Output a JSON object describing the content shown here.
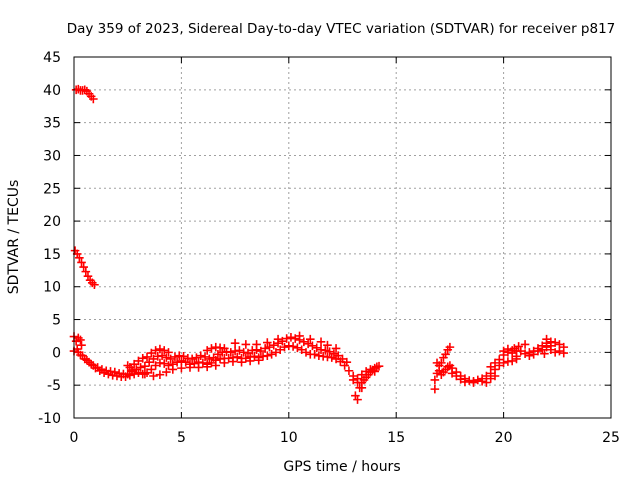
{
  "chart_data": {
    "type": "scatter",
    "title": "Day 359 of 2023, Sidereal Day-to-day VTEC variation (SDTVAR) for receiver p817",
    "xlabel": "GPS time / hours",
    "ylabel": "SDTVAR / TECUs",
    "xlim": [
      0,
      25
    ],
    "ylim": [
      -10,
      45
    ],
    "xticks": [
      0,
      5,
      10,
      15,
      20,
      25
    ],
    "yticks": [
      -10,
      -5,
      0,
      5,
      10,
      15,
      20,
      25,
      30,
      35,
      40,
      45
    ],
    "grid": true,
    "marker": "+",
    "color": "#ff0000",
    "series": [
      {
        "name": "SDTVAR",
        "points": [
          [
            0.1,
            40.0
          ],
          [
            0.2,
            40.1
          ],
          [
            0.3,
            39.9
          ],
          [
            0.4,
            39.9
          ],
          [
            0.5,
            40.0
          ],
          [
            0.6,
            39.8
          ],
          [
            0.7,
            39.4
          ],
          [
            0.8,
            39.0
          ],
          [
            0.9,
            38.6
          ],
          [
            0.05,
            15.5
          ],
          [
            0.15,
            15.0
          ],
          [
            0.25,
            14.4
          ],
          [
            0.35,
            13.7
          ],
          [
            0.45,
            13.0
          ],
          [
            0.55,
            12.3
          ],
          [
            0.65,
            11.6
          ],
          [
            0.75,
            11.0
          ],
          [
            0.85,
            10.6
          ],
          [
            0.95,
            10.3
          ],
          [
            0.0,
            2.4
          ],
          [
            0.1,
            1.7
          ],
          [
            0.2,
            2.2
          ],
          [
            0.3,
            1.9
          ],
          [
            0.35,
            1.1
          ],
          [
            0.15,
            0.5
          ],
          [
            0.0,
            0.2
          ],
          [
            0.2,
            0.0
          ],
          [
            0.4,
            -0.5
          ],
          [
            0.6,
            -1.2
          ],
          [
            0.8,
            -1.8
          ],
          [
            1.0,
            -2.4
          ],
          [
            1.2,
            -2.8
          ],
          [
            1.4,
            -3.1
          ],
          [
            1.6,
            -3.3
          ],
          [
            1.8,
            -3.5
          ],
          [
            2.0,
            -3.6
          ],
          [
            2.2,
            -3.7
          ],
          [
            2.4,
            -3.7
          ],
          [
            2.6,
            -3.5
          ],
          [
            2.8,
            -3.3
          ],
          [
            3.0,
            -3.1
          ],
          [
            3.2,
            -3.3
          ],
          [
            3.4,
            -3.1
          ],
          [
            3.6,
            -2.6
          ],
          [
            3.8,
            -2.0
          ],
          [
            4.0,
            -1.6
          ],
          [
            4.2,
            -1.7
          ],
          [
            4.4,
            -2.0
          ],
          [
            4.6,
            -1.8
          ],
          [
            4.8,
            -1.5
          ],
          [
            5.0,
            -1.3
          ],
          [
            5.2,
            -1.5
          ],
          [
            5.4,
            -1.8
          ],
          [
            5.6,
            -1.7
          ],
          [
            5.8,
            -1.5
          ],
          [
            6.0,
            -1.6
          ],
          [
            6.2,
            -1.8
          ],
          [
            6.4,
            -1.6
          ],
          [
            6.6,
            -1.2
          ],
          [
            6.8,
            -1.0
          ],
          [
            7.0,
            -0.9
          ],
          [
            7.2,
            -0.9
          ],
          [
            7.4,
            -0.8
          ],
          [
            7.6,
            -0.7
          ],
          [
            7.8,
            -0.9
          ],
          [
            8.0,
            -0.9
          ],
          [
            8.2,
            -0.7
          ],
          [
            8.4,
            -0.6
          ],
          [
            8.6,
            -0.8
          ],
          [
            8.8,
            -0.6
          ],
          [
            9.0,
            -0.5
          ],
          [
            9.2,
            -0.3
          ],
          [
            9.4,
            0.0
          ],
          [
            9.6,
            0.4
          ],
          [
            9.8,
            0.8
          ],
          [
            10.0,
            1.0
          ],
          [
            10.2,
            0.9
          ],
          [
            10.4,
            0.7
          ],
          [
            10.6,
            0.4
          ],
          [
            10.8,
            0.0
          ],
          [
            11.0,
            -0.3
          ],
          [
            11.2,
            -0.3
          ],
          [
            11.4,
            -0.5
          ],
          [
            11.6,
            -0.6
          ],
          [
            11.8,
            -0.7
          ],
          [
            12.0,
            -0.8
          ],
          [
            12.2,
            -1.0
          ],
          [
            12.4,
            -1.4
          ],
          [
            12.6,
            -2.0
          ],
          [
            12.8,
            -2.8
          ],
          [
            13.0,
            -3.6
          ],
          [
            13.2,
            -4.6
          ],
          [
            13.4,
            -5.4
          ],
          [
            0.3,
            -0.4
          ],
          [
            0.5,
            -1.0
          ],
          [
            0.7,
            -1.5
          ],
          [
            0.9,
            -2.0
          ],
          [
            1.1,
            -2.3
          ],
          [
            1.3,
            -2.6
          ],
          [
            1.5,
            -2.8
          ],
          [
            1.7,
            -2.9
          ],
          [
            1.9,
            -3.0
          ],
          [
            2.1,
            -3.2
          ],
          [
            2.3,
            -3.3
          ],
          [
            2.5,
            -3.3
          ],
          [
            2.7,
            -2.9
          ],
          [
            2.9,
            -2.6
          ],
          [
            3.1,
            -2.3
          ],
          [
            3.3,
            -2.1
          ],
          [
            3.5,
            -1.5
          ],
          [
            3.7,
            -1.0
          ],
          [
            3.9,
            -0.6
          ],
          [
            4.1,
            -0.5
          ],
          [
            4.3,
            -0.8
          ],
          [
            4.5,
            -1.0
          ],
          [
            4.7,
            -0.7
          ],
          [
            4.9,
            -0.5
          ],
          [
            5.1,
            -0.6
          ],
          [
            5.3,
            -0.9
          ],
          [
            5.5,
            -1.0
          ],
          [
            5.7,
            -0.8
          ],
          [
            5.9,
            -0.5
          ],
          [
            6.1,
            -0.7
          ],
          [
            6.3,
            -1.0
          ],
          [
            6.5,
            -0.8
          ],
          [
            6.7,
            -0.3
          ],
          [
            6.9,
            0.0
          ],
          [
            7.1,
            0.1
          ],
          [
            7.3,
            0.0
          ],
          [
            7.5,
            0.2
          ],
          [
            7.7,
            0.3
          ],
          [
            7.9,
            0.0
          ],
          [
            8.1,
            -0.1
          ],
          [
            8.3,
            0.3
          ],
          [
            8.5,
            0.4
          ],
          [
            8.7,
            0.2
          ],
          [
            8.9,
            0.6
          ],
          [
            9.1,
            0.8
          ],
          [
            9.3,
            1.1
          ],
          [
            9.5,
            1.4
          ],
          [
            9.7,
            1.7
          ],
          [
            9.9,
            2.1
          ],
          [
            10.1,
            2.3
          ],
          [
            10.3,
            2.1
          ],
          [
            10.5,
            1.9
          ],
          [
            10.7,
            1.6
          ],
          [
            10.9,
            1.3
          ],
          [
            11.1,
            1.0
          ],
          [
            11.3,
            0.7
          ],
          [
            11.5,
            0.4
          ],
          [
            11.7,
            0.3
          ],
          [
            11.9,
            0.1
          ],
          [
            12.1,
            -0.2
          ],
          [
            12.3,
            -0.5
          ],
          [
            12.5,
            -1.0
          ],
          [
            12.7,
            -1.5
          ],
          [
            2.6,
            -2.3
          ],
          [
            2.8,
            -1.8
          ],
          [
            3.0,
            -1.3
          ],
          [
            3.2,
            -0.9
          ],
          [
            3.4,
            -0.7
          ],
          [
            3.6,
            -0.1
          ],
          [
            3.8,
            0.3
          ],
          [
            4.0,
            0.5
          ],
          [
            4.2,
            0.3
          ],
          [
            4.4,
            0.0
          ],
          [
            6.2,
            0.3
          ],
          [
            6.4,
            0.6
          ],
          [
            6.6,
            0.8
          ],
          [
            6.8,
            0.7
          ],
          [
            7.0,
            0.6
          ],
          [
            7.5,
            1.4
          ],
          [
            8.0,
            1.2
          ],
          [
            8.5,
            1.2
          ],
          [
            9.0,
            1.5
          ],
          [
            9.5,
            2.0
          ],
          [
            10.5,
            2.5
          ],
          [
            11.0,
            2.0
          ],
          [
            11.5,
            1.6
          ],
          [
            11.8,
            1.1
          ],
          [
            12.2,
            0.6
          ],
          [
            2.5,
            -2.0
          ],
          [
            2.7,
            -2.7
          ],
          [
            3.3,
            -3.3
          ],
          [
            3.7,
            -3.6
          ],
          [
            4.0,
            -3.4
          ],
          [
            4.3,
            -3.0
          ],
          [
            4.6,
            -2.6
          ],
          [
            5.0,
            -2.4
          ],
          [
            5.4,
            -2.3
          ],
          [
            5.8,
            -2.3
          ],
          [
            6.2,
            -2.2
          ],
          [
            6.6,
            -2.0
          ],
          [
            7.0,
            -1.6
          ],
          [
            7.4,
            -1.4
          ],
          [
            7.8,
            -1.5
          ],
          [
            8.2,
            -1.3
          ],
          [
            8.6,
            -1.2
          ],
          [
            13.1,
            -6.6
          ],
          [
            13.2,
            -7.2
          ],
          [
            13.3,
            -5.4
          ],
          [
            13.4,
            -4.6
          ],
          [
            13.5,
            -4.2
          ],
          [
            13.6,
            -3.8
          ],
          [
            13.7,
            -3.4
          ],
          [
            13.8,
            -3.0
          ],
          [
            13.9,
            -2.7
          ],
          [
            14.0,
            -2.4
          ],
          [
            14.1,
            -2.2
          ],
          [
            14.2,
            -2.1
          ],
          [
            13.4,
            -3.4
          ],
          [
            13.6,
            -2.9
          ],
          [
            13.8,
            -2.6
          ],
          [
            14.0,
            -2.9
          ],
          [
            13.0,
            -4.2
          ],
          [
            13.2,
            -4.0
          ],
          [
            16.8,
            -5.6
          ],
          [
            16.8,
            -4.2
          ],
          [
            16.9,
            -3.2
          ],
          [
            17.0,
            -2.0
          ],
          [
            17.1,
            -1.6
          ],
          [
            17.2,
            -0.8
          ],
          [
            17.3,
            -0.3
          ],
          [
            17.4,
            0.4
          ],
          [
            17.5,
            0.8
          ],
          [
            16.9,
            -1.6
          ],
          [
            17.0,
            -2.8
          ],
          [
            17.1,
            -3.4
          ],
          [
            17.2,
            -3.0
          ],
          [
            17.3,
            -2.6
          ],
          [
            17.4,
            -2.2
          ],
          [
            17.5,
            -2.0
          ],
          [
            17.6,
            -2.4
          ],
          [
            17.8,
            -3.0
          ],
          [
            18.0,
            -3.6
          ],
          [
            18.2,
            -4.0
          ],
          [
            18.4,
            -4.3
          ],
          [
            18.6,
            -4.4
          ],
          [
            18.8,
            -4.2
          ],
          [
            19.0,
            -4.0
          ],
          [
            19.2,
            -3.6
          ],
          [
            19.4,
            -3.2
          ],
          [
            19.6,
            -2.6
          ],
          [
            19.8,
            -2.0
          ],
          [
            20.0,
            -1.6
          ],
          [
            20.2,
            -1.4
          ],
          [
            20.4,
            -1.3
          ],
          [
            20.6,
            -1.0
          ],
          [
            17.6,
            -3.2
          ],
          [
            17.8,
            -3.6
          ],
          [
            18.0,
            -4.1
          ],
          [
            18.2,
            -4.5
          ],
          [
            18.6,
            -4.6
          ],
          [
            19.0,
            -4.4
          ],
          [
            19.2,
            -4.6
          ],
          [
            19.4,
            -4.0
          ],
          [
            19.6,
            -3.6
          ],
          [
            19.4,
            -2.2
          ],
          [
            19.6,
            -1.6
          ],
          [
            19.8,
            -1.1
          ],
          [
            20.0,
            -0.4
          ],
          [
            20.2,
            0.0
          ],
          [
            20.4,
            0.3
          ],
          [
            20.6,
            0.2
          ],
          [
            20.8,
            0.2
          ],
          [
            20.0,
            0.2
          ],
          [
            20.2,
            0.5
          ],
          [
            20.4,
            -0.1
          ],
          [
            20.6,
            -0.6
          ],
          [
            21.0,
            -0.2
          ],
          [
            21.2,
            0.0
          ],
          [
            21.4,
            0.2
          ],
          [
            21.6,
            0.6
          ],
          [
            21.8,
            1.0
          ],
          [
            22.0,
            1.4
          ],
          [
            22.2,
            1.6
          ],
          [
            22.4,
            1.5
          ],
          [
            22.6,
            1.2
          ],
          [
            22.8,
            0.8
          ],
          [
            21.2,
            -0.5
          ],
          [
            21.4,
            -0.3
          ],
          [
            21.6,
            0.2
          ],
          [
            21.8,
            0.4
          ],
          [
            22.0,
            0.8
          ],
          [
            22.2,
            0.4
          ],
          [
            22.4,
            0.0
          ],
          [
            22.6,
            0.2
          ],
          [
            22.8,
            -0.1
          ],
          [
            22.0,
            2.0
          ],
          [
            22.2,
            1.0
          ],
          [
            21.9,
            -0.2
          ],
          [
            21.0,
            1.2
          ],
          [
            20.5,
            0.6
          ],
          [
            20.7,
            0.9
          ]
        ]
      }
    ]
  }
}
